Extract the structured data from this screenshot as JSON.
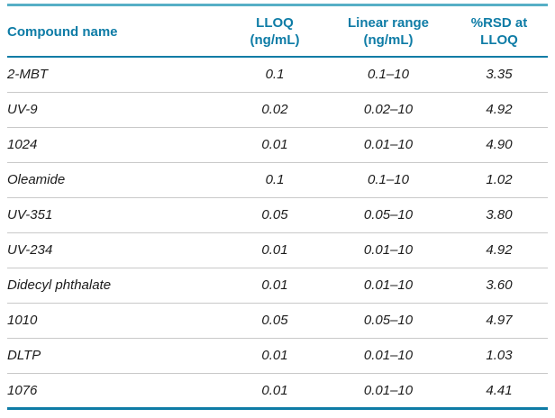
{
  "colors": {
    "accent": "#0e7ca6",
    "top_rule": "#56afc6",
    "row_divider": "#c9c9c9",
    "text": "#1c1c1c",
    "background": "#ffffff"
  },
  "table": {
    "columns": [
      {
        "id": "compound",
        "label": "Compound name"
      },
      {
        "id": "lloq",
        "label": "LLOQ\n(ng/mL)"
      },
      {
        "id": "range",
        "label": "Linear range\n(ng/mL)"
      },
      {
        "id": "rsd",
        "label": "%RSD at\nLLOQ"
      }
    ],
    "rows": [
      {
        "compound": "2-MBT",
        "lloq": "0.1",
        "range": "0.1–10",
        "rsd": "3.35"
      },
      {
        "compound": "UV-9",
        "lloq": "0.02",
        "range": "0.02–10",
        "rsd": "4.92"
      },
      {
        "compound": "1024",
        "lloq": "0.01",
        "range": "0.01–10",
        "rsd": "4.90"
      },
      {
        "compound": "Oleamide",
        "lloq": "0.1",
        "range": "0.1–10",
        "rsd": "1.02"
      },
      {
        "compound": "UV-351",
        "lloq": "0.05",
        "range": "0.05–10",
        "rsd": "3.80"
      },
      {
        "compound": "UV-234",
        "lloq": "0.01",
        "range": "0.01–10",
        "rsd": "4.92"
      },
      {
        "compound": "Didecyl phthalate",
        "lloq": "0.01",
        "range": "0.01–10",
        "rsd": "3.60"
      },
      {
        "compound": "1010",
        "lloq": "0.05",
        "range": "0.05–10",
        "rsd": "4.97"
      },
      {
        "compound": "DLTP",
        "lloq": "0.01",
        "range": "0.01–10",
        "rsd": "1.03"
      },
      {
        "compound": "1076",
        "lloq": "0.01",
        "range": "0.01–10",
        "rsd": "4.41"
      }
    ]
  }
}
